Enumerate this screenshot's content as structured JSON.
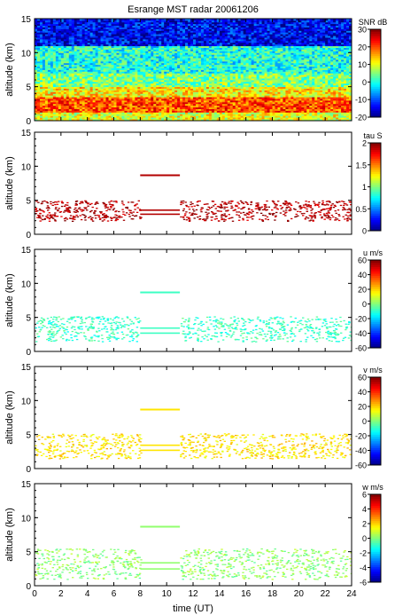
{
  "chart_data": {
    "title": "Esrange MST radar 20061206",
    "type": "heatmap",
    "xlabel": "time (UT)",
    "xlim": [
      0,
      24
    ],
    "xticks": [
      0,
      2,
      4,
      6,
      8,
      10,
      12,
      14,
      16,
      18,
      20,
      22,
      24
    ],
    "panels": [
      {
        "id": "snr",
        "ylabel": "altitude (km)",
        "ylim": [
          0,
          15
        ],
        "yticks": [
          0,
          5,
          10,
          15
        ],
        "colorbar": {
          "label": "SNR dB",
          "range": [
            -20,
            30
          ],
          "ticks": [
            -20,
            -10,
            0,
            10,
            20,
            30
          ]
        },
        "layers": [
          {
            "alt_min": 0.0,
            "alt_max": 1.2,
            "value": 10
          },
          {
            "alt_min": 1.2,
            "alt_max": 3.5,
            "value": 20
          },
          {
            "alt_min": 3.5,
            "alt_max": 5.0,
            "value": 12
          },
          {
            "alt_min": 5.0,
            "alt_max": 7.0,
            "value": 5
          },
          {
            "alt_min": 7.0,
            "alt_max": 11.0,
            "value": 0
          },
          {
            "alt_min": 11.0,
            "alt_max": 15.0,
            "value": -14
          }
        ]
      },
      {
        "id": "tau",
        "ylabel": "altitude (km)",
        "ylim": [
          0,
          15
        ],
        "yticks": [
          0,
          5,
          10,
          15
        ],
        "colorbar": {
          "label": "tau S",
          "range": [
            0,
            2
          ],
          "ticks": [
            0,
            0.5,
            1,
            1.5,
            2
          ]
        },
        "layers": [
          {
            "alt_min": 2.0,
            "alt_max": 5.0,
            "value": 1.9
          }
        ]
      },
      {
        "id": "u",
        "ylabel": "altitude (km)",
        "ylim": [
          0,
          15
        ],
        "yticks": [
          0,
          5,
          10,
          15
        ],
        "colorbar": {
          "label": "u m/s",
          "range": [
            -60,
            60
          ],
          "ticks": [
            -60,
            -40,
            -20,
            0,
            20,
            40,
            60
          ]
        },
        "layers": [
          {
            "alt_min": 1.5,
            "alt_max": 5.2,
            "value": -8
          }
        ]
      },
      {
        "id": "v",
        "ylabel": "altitude (km)",
        "ylim": [
          0,
          15
        ],
        "yticks": [
          0,
          5,
          10,
          15
        ],
        "colorbar": {
          "label": "v m/s",
          "range": [
            -60,
            60
          ],
          "ticks": [
            -60,
            -40,
            -20,
            0,
            20,
            40,
            60
          ]
        },
        "layers": [
          {
            "alt_min": 1.5,
            "alt_max": 5.2,
            "value": 18
          }
        ]
      },
      {
        "id": "w",
        "ylabel": "altitude (km)",
        "ylim": [
          0,
          15
        ],
        "yticks": [
          0,
          5,
          10,
          15
        ],
        "colorbar": {
          "label": "w m/s",
          "range": [
            -6,
            6
          ],
          "ticks": [
            -6,
            -4,
            -2,
            0,
            2,
            4,
            6
          ]
        },
        "layers": [
          {
            "alt_min": 1.0,
            "alt_max": 5.5,
            "value": 0.2
          }
        ]
      }
    ]
  }
}
